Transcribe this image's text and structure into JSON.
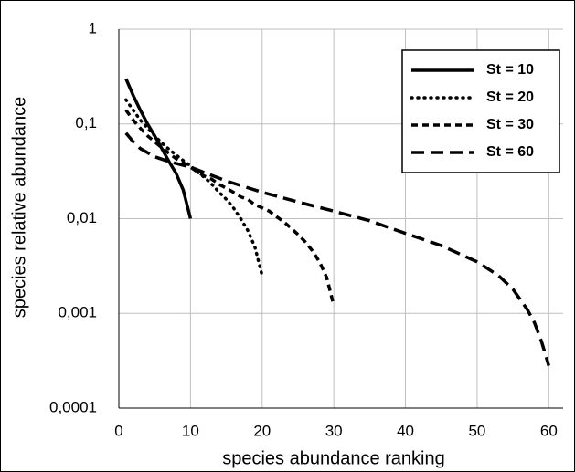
{
  "chart_data": {
    "type": "line",
    "x_label": "species abundance ranking",
    "y_label": "species relative abundance",
    "xlim": [
      0,
      62
    ],
    "xticks": [
      0,
      10,
      20,
      30,
      40,
      50,
      60
    ],
    "ylim": [
      0.0001,
      1
    ],
    "log_y": true,
    "yticks": [
      {
        "value": 0.0001,
        "label": "0,0001"
      },
      {
        "value": 0.001,
        "label": "0,001"
      },
      {
        "value": 0.01,
        "label": "0,01"
      },
      {
        "value": 0.1,
        "label": "0,1"
      },
      1
    ],
    "grid": true,
    "legend": "upper right",
    "series": [
      {
        "name": "St = 10",
        "color": "#000000",
        "style": "solid",
        "x": [
          1,
          2,
          3,
          4,
          5,
          6,
          7,
          8,
          9,
          10
        ],
        "values": [
          0.3,
          0.2,
          0.14,
          0.1,
          0.075,
          0.055,
          0.04,
          0.03,
          0.02,
          0.01
        ]
      },
      {
        "name": "St = 20",
        "color": "#000000",
        "style": "dotted",
        "x": [
          1,
          2,
          3,
          4,
          5,
          6,
          7,
          8,
          9,
          10,
          11,
          12,
          13,
          14,
          15,
          16,
          17,
          18,
          19,
          20
        ],
        "values": [
          0.18,
          0.14,
          0.11,
          0.09,
          0.075,
          0.063,
          0.054,
          0.047,
          0.041,
          0.036,
          0.031,
          0.027,
          0.023,
          0.019,
          0.016,
          0.013,
          0.01,
          0.0075,
          0.005,
          0.0025
        ]
      },
      {
        "name": "St = 30",
        "color": "#000000",
        "style": "dashed",
        "x": [
          1,
          2,
          3,
          4,
          5,
          6,
          7,
          8,
          9,
          10,
          11,
          12,
          13,
          14,
          15,
          16,
          17,
          18,
          19,
          20,
          21,
          22,
          23,
          24,
          25,
          26,
          27,
          28,
          29,
          30
        ],
        "values": [
          0.14,
          0.11,
          0.09,
          0.075,
          0.065,
          0.056,
          0.049,
          0.043,
          0.039,
          0.035,
          0.031,
          0.028,
          0.026,
          0.023,
          0.021,
          0.019,
          0.017,
          0.016,
          0.014,
          0.013,
          0.012,
          0.0105,
          0.0093,
          0.008,
          0.0068,
          0.0057,
          0.0046,
          0.0035,
          0.0024,
          0.0012
        ]
      },
      {
        "name": "St = 60",
        "color": "#000000",
        "style": "longdash",
        "x": [
          1,
          2,
          3,
          5,
          7,
          10,
          15,
          20,
          25,
          30,
          35,
          40,
          45,
          50,
          53,
          55,
          57,
          58,
          59,
          60
        ],
        "values": [
          0.08,
          0.065,
          0.055,
          0.045,
          0.04,
          0.035,
          0.025,
          0.019,
          0.015,
          0.012,
          0.0095,
          0.007,
          0.0052,
          0.0035,
          0.0025,
          0.0018,
          0.0011,
          0.0008,
          0.0005,
          0.00028
        ]
      }
    ]
  }
}
